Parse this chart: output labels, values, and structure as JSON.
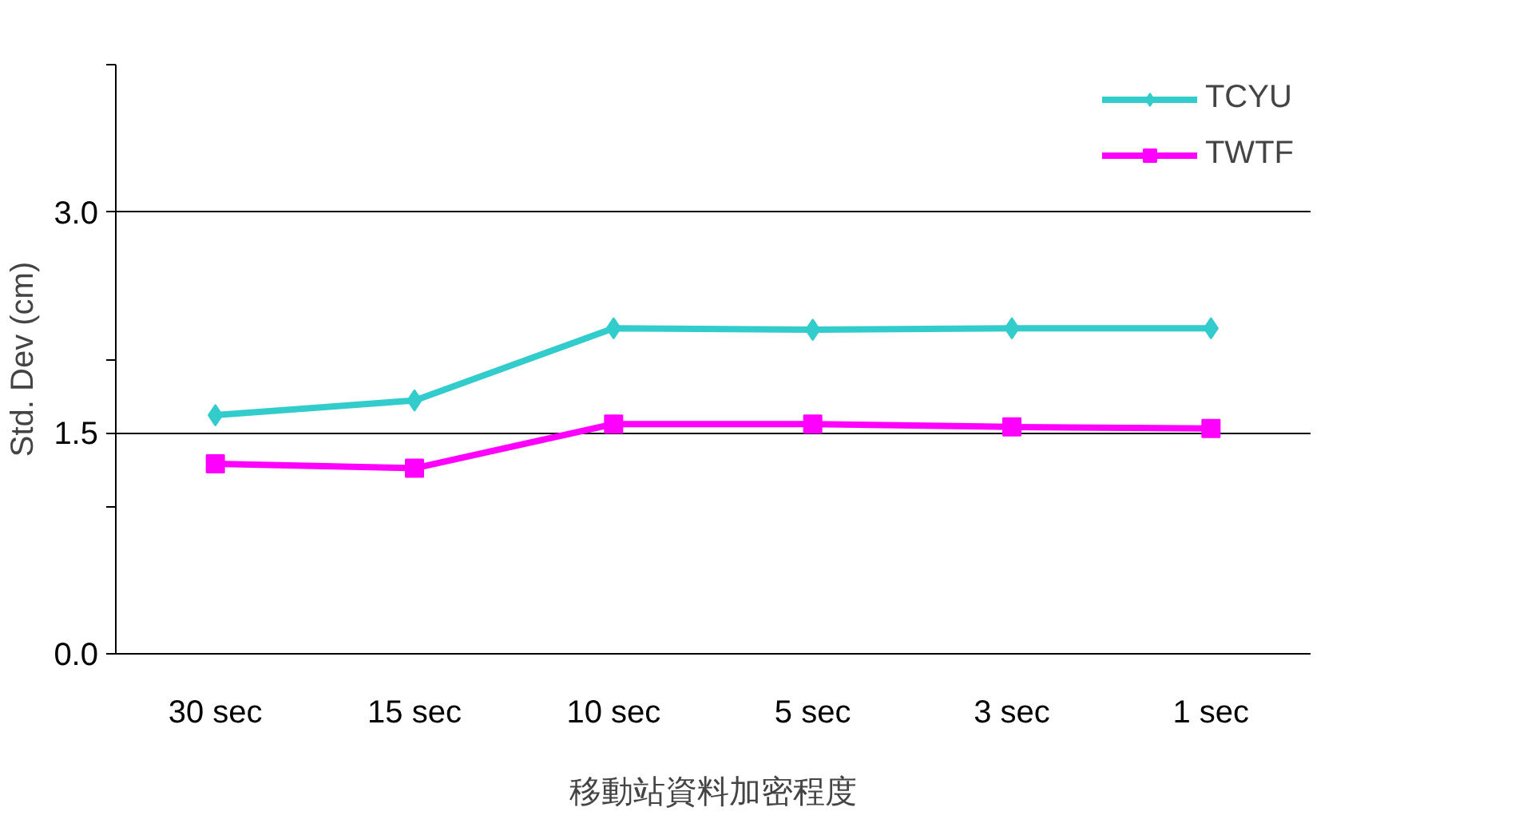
{
  "chart_data": {
    "type": "line",
    "xlabel": "移動站資料加密程度",
    "ylabel": "Std. Dev (cm)",
    "categories": [
      "30 sec",
      "15 sec",
      "10 sec",
      "5 sec",
      "3 sec",
      "1 sec"
    ],
    "series": [
      {
        "name": "TCYU",
        "color": "#33cccc",
        "marker": "diamond",
        "values": [
          1.62,
          1.72,
          2.21,
          2.2,
          2.21,
          2.21
        ]
      },
      {
        "name": "TWTF",
        "color": "#ff00ff",
        "marker": "square",
        "values": [
          1.29,
          1.26,
          1.56,
          1.56,
          1.54,
          1.53
        ]
      }
    ],
    "ylim": [
      0,
      4
    ],
    "yticks": [
      {
        "value": 0,
        "label": "0.0"
      },
      {
        "value": 1,
        "label": null
      },
      {
        "value": 1.5,
        "label": "1.5"
      },
      {
        "value": 2,
        "label": null
      },
      {
        "value": 3,
        "label": "3.0"
      },
      {
        "value": 4,
        "label": null
      }
    ],
    "grid": "y",
    "legend": "top right",
    "line_style": "solid"
  }
}
